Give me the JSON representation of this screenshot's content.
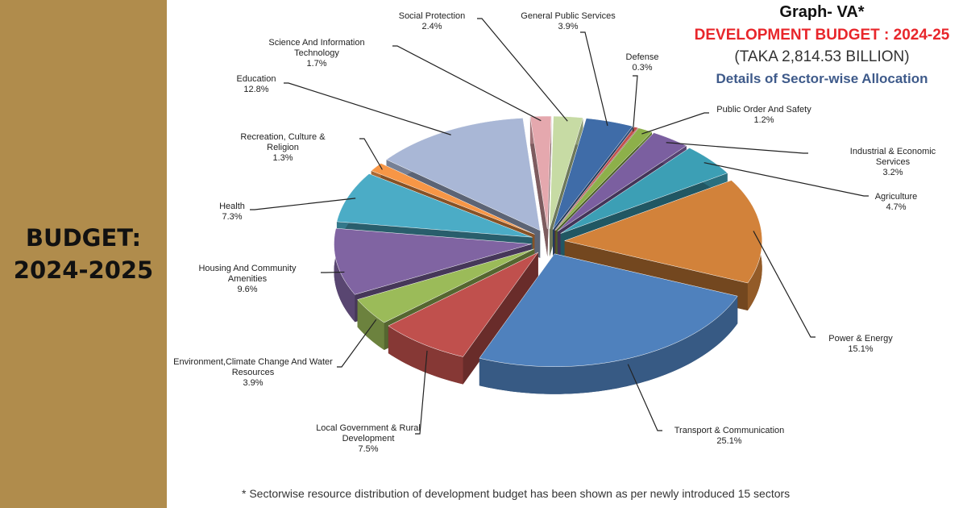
{
  "side_title": "BUDGET: 2024-2025",
  "chart_data": {
    "type": "pie",
    "title": "Graph- VA*",
    "subtitle": "DEVELOPMENT BUDGET : 2024-25",
    "total": "(TAKA 2,814.53 BILLION)",
    "caption": "Details of Sector-wise Allocation",
    "footnote": "* Sectorwise resource distribution of development budget has been shown as per newly introduced 15 sectors",
    "slices": [
      {
        "label": "Science And Information Technology",
        "value_label": "1.7%",
        "value": 1.7,
        "color": "#e5a8ae"
      },
      {
        "label": "Social Protection",
        "value_label": "2.4%",
        "value": 2.4,
        "color": "#c7dba4"
      },
      {
        "label": "General Public Services",
        "value_label": "3.9%",
        "value": 3.9,
        "color": "#3f6ca8"
      },
      {
        "label": "Defense",
        "value_label": "0.3%",
        "value": 0.3,
        "color": "#c0504d"
      },
      {
        "label": "Public Order And Safety",
        "value_label": "1.2%",
        "value": 1.2,
        "color": "#8db04a"
      },
      {
        "label": "Industrial & Economic Services",
        "value_label": "3.2%",
        "value": 3.2,
        "color": "#7b5fa0"
      },
      {
        "label": "Agriculture",
        "value_label": "4.7%",
        "value": 4.7,
        "color": "#3c9fb5"
      },
      {
        "label": "Power & Energy",
        "value_label": "15.1%",
        "value": 15.1,
        "color": "#d2823a"
      },
      {
        "label": "Transport & Communication",
        "value_label": "25.1%",
        "value": 25.1,
        "color": "#4f81bd"
      },
      {
        "label": "Local Government & Rural Development",
        "value_label": "7.5%",
        "value": 7.5,
        "color": "#c0504d"
      },
      {
        "label": "Environment,Climate Change And Water Resources",
        "value_label": "3.9%",
        "value": 3.9,
        "color": "#9bbb59"
      },
      {
        "label": "Housing And Community Amenities",
        "value_label": "9.6%",
        "value": 9.6,
        "color": "#8064a2"
      },
      {
        "label": "Health",
        "value_label": "7.3%",
        "value": 7.3,
        "color": "#4bacc6"
      },
      {
        "label": "Recreation, Culture &  Religion",
        "value_label": "1.3%",
        "value": 1.3,
        "color": "#f79646"
      },
      {
        "label": "Education",
        "value_label": "12.8%",
        "value": 12.8,
        "color": "#a9b7d6"
      }
    ]
  }
}
